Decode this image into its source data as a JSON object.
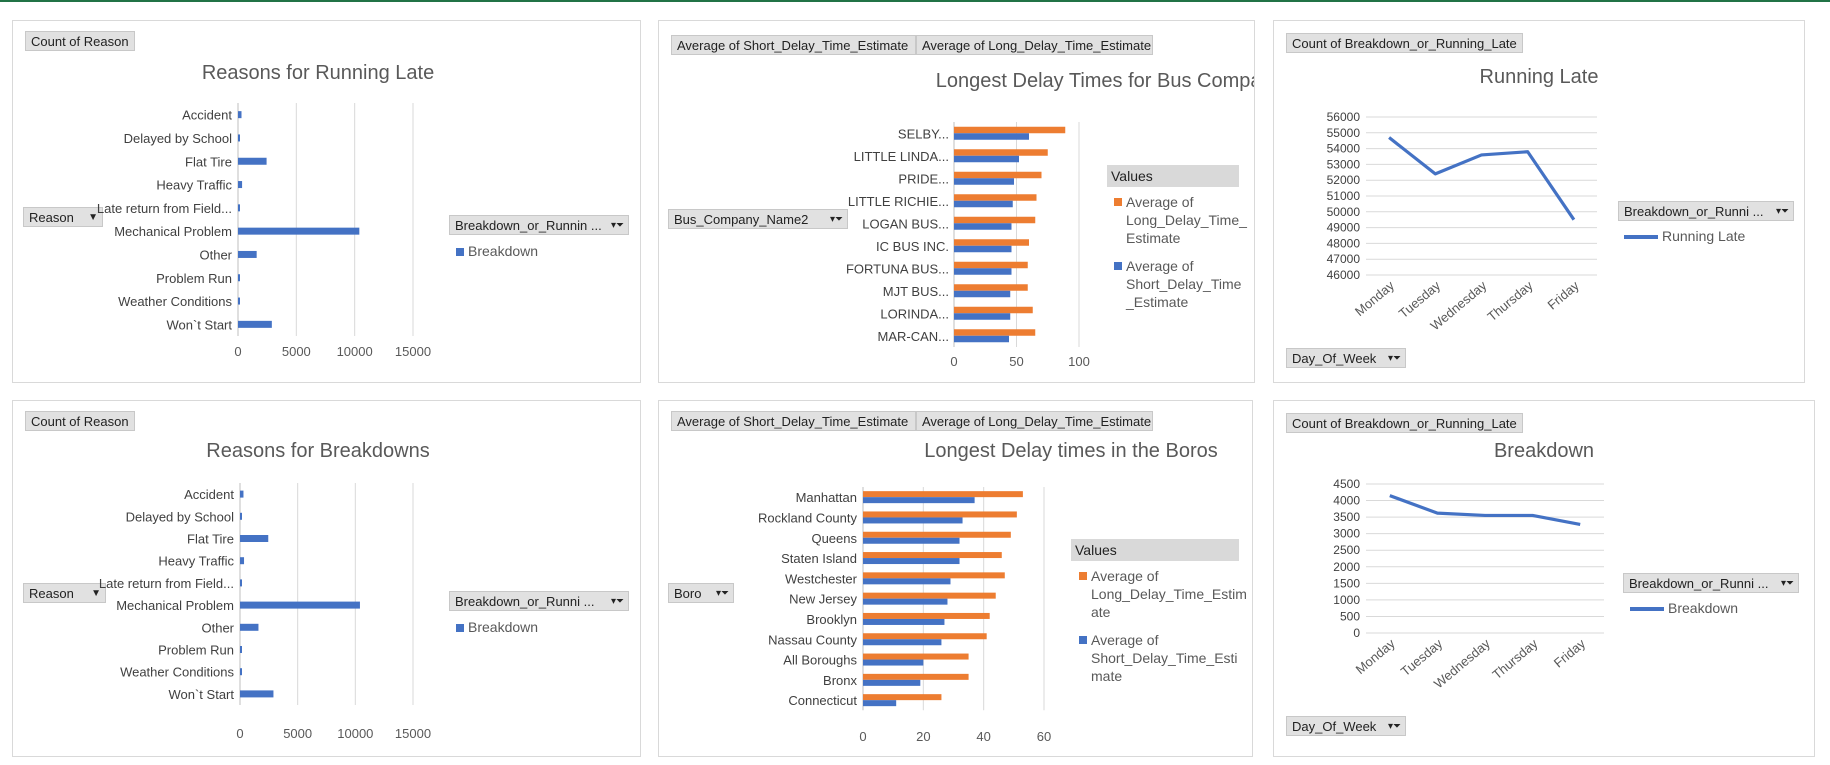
{
  "colors": {
    "blue": "#4472c4",
    "orange": "#ed7d31",
    "grid": "#d9d9d9",
    "text": "#595959"
  },
  "chart_data": [
    {
      "id": "c1",
      "type": "bar",
      "orientation": "horizontal",
      "title": "Reasons for Running Late",
      "value_button": "Count of Reason",
      "axis_button": "Reason",
      "legend_button": "Breakdown_or_Runnin ...",
      "legend_title": "",
      "categories": [
        "Accident",
        "Delayed by School",
        "Flat Tire",
        "Heavy Traffic",
        "Late return from Field...",
        "Mechanical Problem",
        "Other",
        "Problem Run",
        "Weather Conditions",
        "Won`t Start"
      ],
      "series": [
        {
          "name": "Breakdown",
          "color": "#4472c4",
          "values": [
            300,
            60,
            2450,
            350,
            90,
            10400,
            1600,
            80,
            40,
            2900
          ]
        }
      ],
      "xticks": [
        0,
        5000,
        10000,
        15000
      ],
      "xlim": [
        0,
        15000
      ],
      "grid": true,
      "legend_position": "right"
    },
    {
      "id": "c2",
      "type": "bar",
      "orientation": "horizontal",
      "title": "Longest Delay Times for Bus Companies",
      "value_buttons": [
        "Average of Short_Delay_Time_Estimate",
        "Average of Long_Delay_Time_Estimate"
      ],
      "axis_button": "Bus_Company_Name2",
      "legend_title": "Values",
      "categories": [
        "SELBY...",
        "LITTLE LINDA...",
        "PRIDE...",
        "LITTLE RICHIE...",
        "LOGAN BUS...",
        "IC BUS INC.",
        "FORTUNA BUS...",
        "MJT BUS...",
        "LORINDA...",
        "MAR-CAN..."
      ],
      "series": [
        {
          "name": "Average of Long_Delay_Time_Estimate",
          "color": "#ed7d31",
          "values": [
            89,
            75,
            70,
            66,
            65,
            60,
            59,
            59,
            63,
            65
          ]
        },
        {
          "name": "Average of Short_Delay_Time_Estimate",
          "color": "#4472c4",
          "values": [
            60,
            52,
            48,
            47,
            46,
            46,
            46,
            45,
            45,
            44
          ]
        }
      ],
      "legend_labels": [
        [
          "Average of",
          "Long_Delay_Time_",
          "Estimate"
        ],
        [
          "Average of",
          "Short_Delay_Time",
          "_Estimate"
        ]
      ],
      "xticks": [
        0,
        50,
        100
      ],
      "xlim": [
        0,
        100
      ],
      "grid": true,
      "legend_position": "right"
    },
    {
      "id": "c3",
      "type": "line",
      "title": "Running Late",
      "value_button": "Count of Breakdown_or_Running_Late",
      "axis_button": "Day_Of_Week",
      "legend_button": "Breakdown_or_Runni ...",
      "categories": [
        "Monday",
        "Tuesday",
        "Wednesday",
        "Thursday",
        "Friday"
      ],
      "series": [
        {
          "name": "Running Late",
          "color": "#4472c4",
          "values": [
            54700,
            52400,
            53600,
            53800,
            49500
          ]
        }
      ],
      "yticks": [
        46000,
        47000,
        48000,
        49000,
        50000,
        51000,
        52000,
        53000,
        54000,
        55000,
        56000
      ],
      "ylim": [
        46000,
        56000
      ],
      "grid": true,
      "legend_position": "right"
    },
    {
      "id": "c4",
      "type": "bar",
      "orientation": "horizontal",
      "title": "Reasons for Breakdowns",
      "value_button": "Count of Reason",
      "axis_button": "Reason",
      "legend_button": "Breakdown_or_Runni ...",
      "legend_title": "",
      "categories": [
        "Accident",
        "Delayed by School",
        "Flat Tire",
        "Heavy Traffic",
        "Late return from Field...",
        "Mechanical Problem",
        "Other",
        "Problem Run",
        "Weather Conditions",
        "Won`t Start"
      ],
      "series": [
        {
          "name": "Breakdown",
          "color": "#4472c4",
          "values": [
            300,
            60,
            2450,
            350,
            90,
            10400,
            1600,
            80,
            40,
            2900
          ]
        }
      ],
      "xticks": [
        0,
        5000,
        10000,
        15000
      ],
      "xlim": [
        0,
        15000
      ],
      "grid": true,
      "legend_position": "right"
    },
    {
      "id": "c5",
      "type": "bar",
      "orientation": "horizontal",
      "title": "Longest Delay times in the Boros",
      "value_buttons": [
        "Average of Short_Delay_Time_Estimate",
        "Average of Long_Delay_Time_Estimate"
      ],
      "axis_button": "Boro",
      "legend_title": "Values",
      "categories": [
        "Manhattan",
        "Rockland County",
        "Queens",
        "Staten Island",
        "Westchester",
        "New Jersey",
        "Brooklyn",
        "Nassau County",
        "All Boroughs",
        "Bronx",
        "Connecticut"
      ],
      "series": [
        {
          "name": "Average of Long_Delay_Time_Estimate",
          "color": "#ed7d31",
          "values": [
            53,
            51,
            49,
            46,
            47,
            44,
            42,
            41,
            35,
            35,
            26
          ]
        },
        {
          "name": "Average of Short_Delay_Time_Estimate",
          "color": "#4472c4",
          "values": [
            37,
            33,
            32,
            32,
            29,
            28,
            27,
            26,
            20,
            19,
            11
          ]
        }
      ],
      "legend_labels": [
        [
          "Average of",
          "Long_Delay_Time_Estim",
          "ate"
        ],
        [
          "Average of",
          "Short_Delay_Time_Esti",
          "mate"
        ]
      ],
      "xticks": [
        0,
        20,
        40,
        60
      ],
      "xlim": [
        0,
        60
      ],
      "grid": true,
      "legend_position": "right"
    },
    {
      "id": "c6",
      "type": "line",
      "title": "Breakdown",
      "value_button": "Count of Breakdown_or_Running_Late",
      "axis_button": "Day_Of_Week",
      "legend_button": "Breakdown_or_Runni ...",
      "categories": [
        "Monday",
        "Tuesday",
        "Wednesday",
        "Thursday",
        "Friday"
      ],
      "series": [
        {
          "name": "Breakdown",
          "color": "#4472c4",
          "values": [
            4150,
            3620,
            3550,
            3550,
            3280
          ]
        }
      ],
      "yticks": [
        0,
        500,
        1000,
        1500,
        2000,
        2500,
        3000,
        3500,
        4000,
        4500
      ],
      "ylim": [
        0,
        4500
      ],
      "grid": true,
      "legend_position": "right"
    }
  ]
}
